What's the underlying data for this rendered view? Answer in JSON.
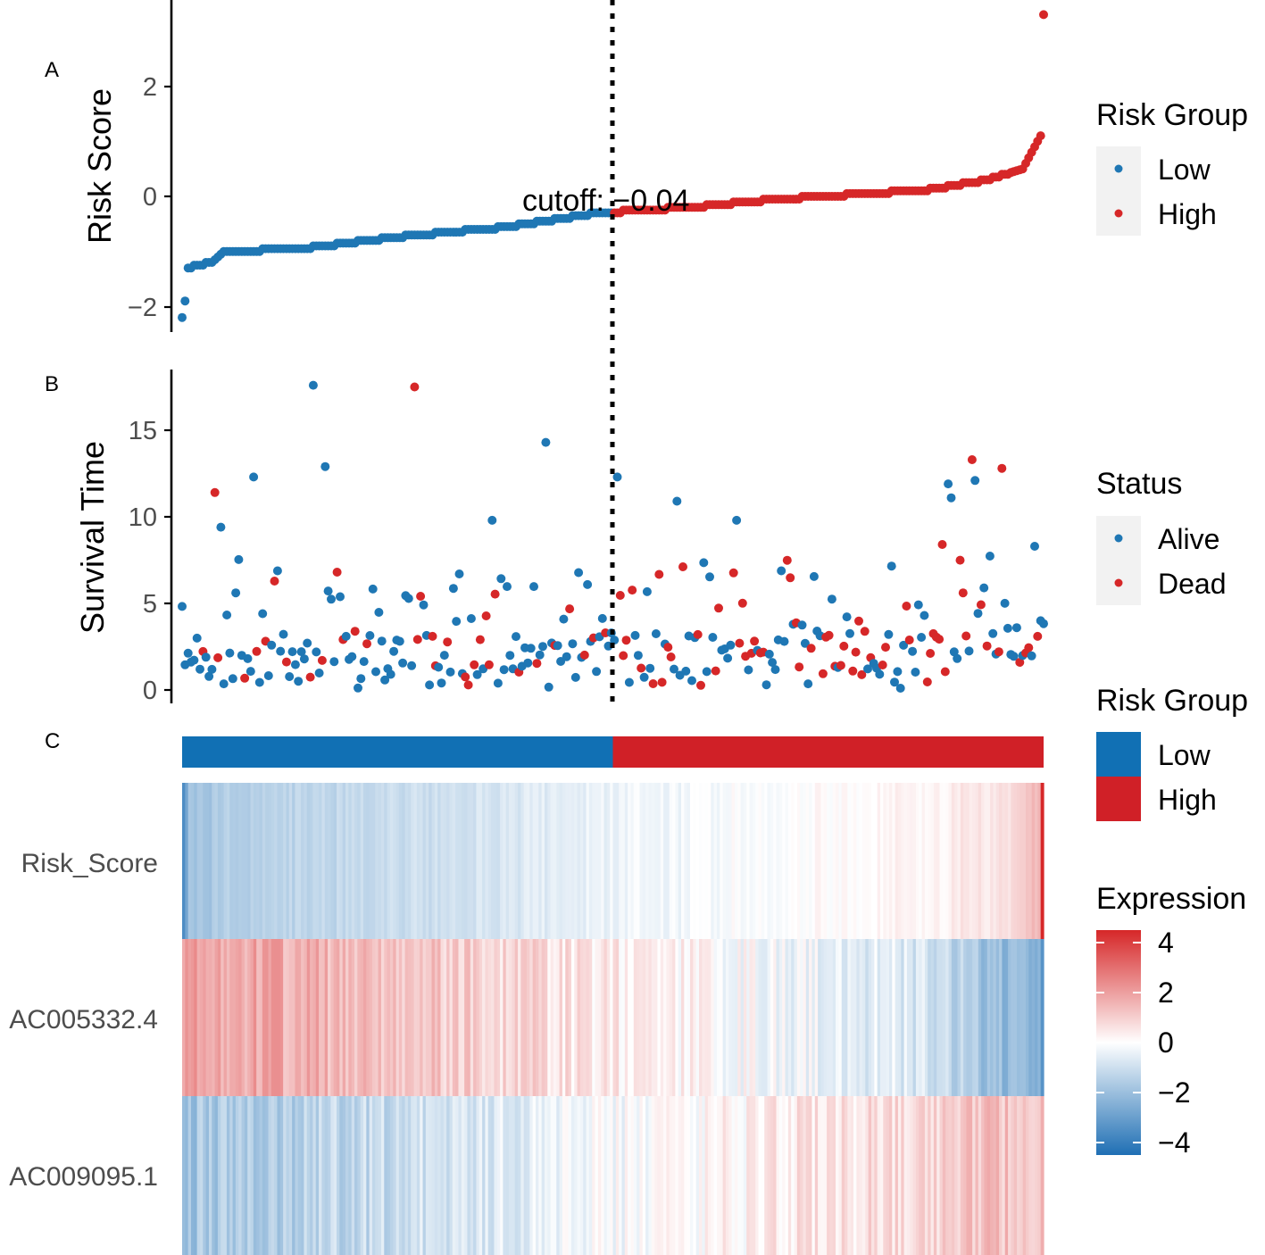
{
  "colors": {
    "low": "#1f77b4",
    "high": "#d62728",
    "low_bar": "#1170b4",
    "high_bar": "#d02027",
    "axis_text": "#4d4d4d",
    "legend_key_bg": "#f2f2f2"
  },
  "chart_data": [
    {
      "panel": "A",
      "type": "scatter",
      "ylabel": "Risk Score",
      "ylim": [
        -2.5,
        3.5
      ],
      "yticks": [
        -2,
        0,
        2
      ],
      "n_samples": 290,
      "cutoff_index": 145,
      "cutoff_value": -0.04,
      "cutoff_label": "cutoff: -0.04",
      "score_curve_knots": [
        [
          0,
          -2.2
        ],
        [
          1,
          -1.9
        ],
        [
          2,
          -1.3
        ],
        [
          10,
          -1.2
        ],
        [
          14,
          -1.0
        ],
        [
          40,
          -0.95
        ],
        [
          70,
          -0.75
        ],
        [
          110,
          -0.55
        ],
        [
          140,
          -0.3
        ],
        [
          170,
          -0.2
        ],
        [
          200,
          -0.05
        ],
        [
          230,
          0.05
        ],
        [
          250,
          0.12
        ],
        [
          270,
          0.3
        ],
        [
          282,
          0.5
        ],
        [
          288,
          1.1
        ],
        [
          289,
          3.3
        ]
      ],
      "legend": {
        "title": "Risk Group",
        "entries": [
          "Low",
          "High"
        ]
      }
    },
    {
      "panel": "B",
      "type": "scatter",
      "ylabel": "Survival Time",
      "ylim": [
        -0.5,
        18
      ],
      "yticks": [
        0,
        5,
        10,
        15
      ],
      "n_samples": 290,
      "cutoff_index": 145,
      "notable_points": [
        [
          44,
          17.6
        ],
        [
          78,
          17.5
        ],
        [
          122,
          14.3
        ],
        [
          48,
          12.9
        ],
        [
          24,
          12.3
        ],
        [
          146,
          12.3
        ],
        [
          257,
          11.9
        ],
        [
          258,
          11.1
        ],
        [
          166,
          10.9
        ],
        [
          265,
          13.3
        ],
        [
          266,
          12.1
        ],
        [
          275,
          12.8
        ],
        [
          11,
          11.4
        ],
        [
          13,
          9.4
        ],
        [
          104,
          9.8
        ],
        [
          186,
          9.8
        ],
        [
          255,
          8.4
        ],
        [
          286,
          8.3
        ]
      ],
      "legend": {
        "title": "Status",
        "entries": [
          "Alive",
          "Dead"
        ]
      }
    },
    {
      "panel": "C",
      "type": "heatmap",
      "rows": [
        "Risk_Score",
        "AC005332.4",
        "AC009095.1"
      ],
      "n_columns": 290,
      "annotation": {
        "title": "Risk Group",
        "entries": [
          "Low",
          "High"
        ]
      },
      "color_scale": {
        "title": "Expression",
        "ticks": [
          4,
          2,
          0,
          -2,
          -4
        ],
        "tick_labels": [
          "4",
          "2",
          "0",
          "−2",
          "−4"
        ]
      }
    }
  ],
  "labels": {
    "panel_a": "A",
    "panel_b": "B",
    "panel_c": "C",
    "a_ticks": [
      "2",
      "0",
      "−2"
    ],
    "b_ticks": [
      "15",
      "10",
      "5",
      "0"
    ],
    "a_ylabel": "Risk Score",
    "b_ylabel": "Survival Time",
    "cutoff_text": "cutoff: −0.04",
    "leg_risk_title": "Risk Group",
    "leg_low": "Low",
    "leg_high": "High",
    "leg_status_title": "Status",
    "leg_alive": "Alive",
    "leg_dead": "Dead",
    "leg_risk_title2": "Risk Group",
    "leg_low2": "Low",
    "leg_high2": "High",
    "leg_expr_title": "Expression",
    "expr_ticks": [
      "4",
      "2",
      "0",
      "−2",
      "−4"
    ],
    "row_1": "Risk_Score",
    "row_2": "AC005332.4",
    "row_3": "AC009095.1"
  }
}
